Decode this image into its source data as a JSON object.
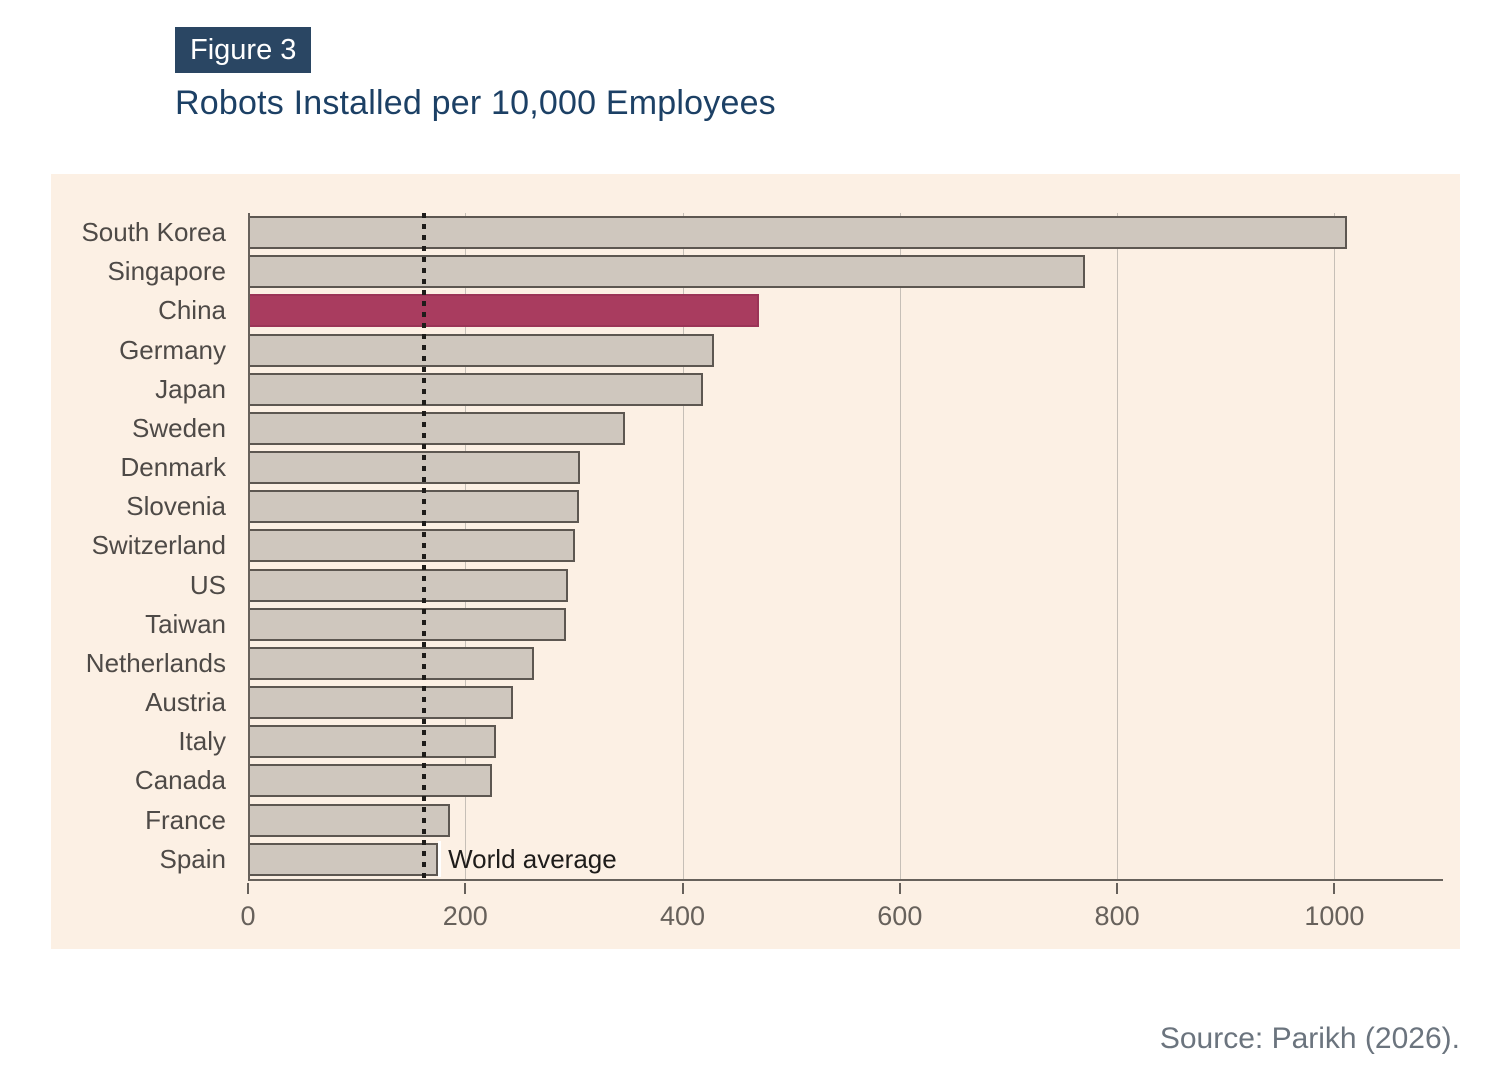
{
  "figure": {
    "badge": "Figure 3",
    "title": "Robots Installed per 10,000 Employees"
  },
  "source": "Source: Parikh (2026).",
  "chart_data": {
    "type": "bar",
    "orientation": "horizontal",
    "title": "Robots Installed per 10,000 Employees",
    "categories": [
      "South Korea",
      "Singapore",
      "China",
      "Germany",
      "Japan",
      "Sweden",
      "Denmark",
      "Slovenia",
      "Switzerland",
      "US",
      "Taiwan",
      "Netherlands",
      "Austria",
      "Italy",
      "Canada",
      "France",
      "Spain"
    ],
    "values": [
      1012,
      770,
      470,
      429,
      419,
      347,
      306,
      305,
      301,
      295,
      293,
      263,
      244,
      228,
      225,
      186,
      175
    ],
    "highlight_category": "China",
    "annotation": {
      "label": "World average",
      "value": 162
    },
    "xticks": [
      0,
      200,
      400,
      600,
      800,
      1000
    ],
    "xlim": [
      0,
      1100
    ],
    "grid": true,
    "colors": {
      "panel_bg": "#FCF0E4",
      "bar": "#CFC7BE",
      "bar_border": "#5D5751",
      "highlight": "#A93C5F",
      "highlight_border": "#9B3457",
      "grid": "#C6BFB7",
      "axis": "#67615B",
      "label": "#4E4A47",
      "annotation_line": "#1E1C1A",
      "title": "#1C4065",
      "badge_bg": "#2A4663",
      "badge_text": "#FFFFFF",
      "source": "#6B747E"
    }
  }
}
